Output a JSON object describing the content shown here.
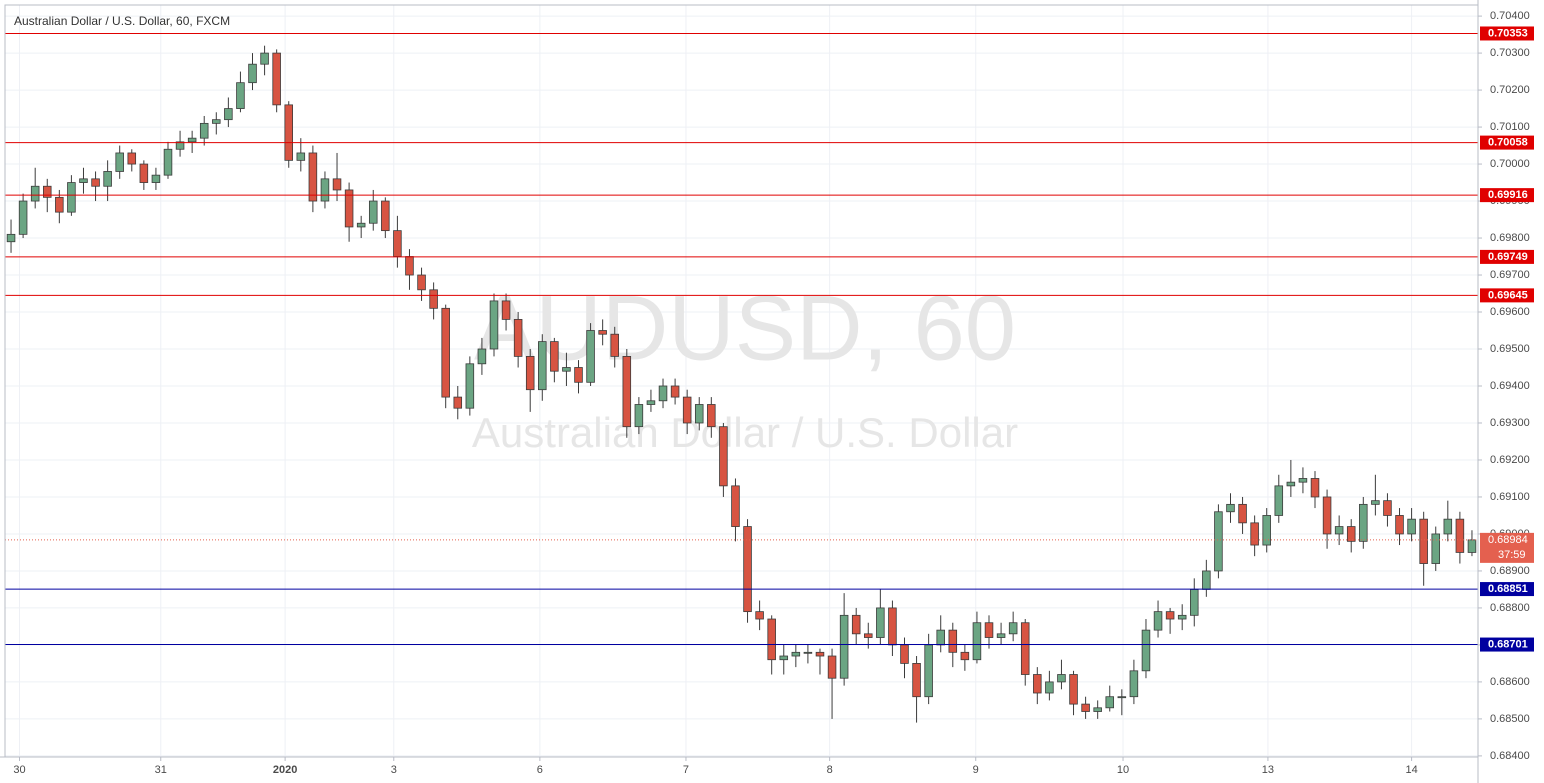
{
  "chart_data": {
    "type": "candlestick",
    "title": "Australian Dollar / U.S. Dollar, 60, FXCM",
    "watermark_symbol": "AUDUSD, 60",
    "watermark_name": "Australian Dollar / U.S. Dollar",
    "up_color": "#6ba583",
    "down_color": "#d75442",
    "grid": true,
    "ylim": [
      0.68397,
      0.7043
    ],
    "yticks": [
      {
        "value": 0.684,
        "label": "0.68400"
      },
      {
        "value": 0.685,
        "label": "0.68500"
      },
      {
        "value": 0.686,
        "label": "0.68600"
      },
      {
        "value": 0.687,
        "label": "0.68700"
      },
      {
        "value": 0.688,
        "label": "0.68800"
      },
      {
        "value": 0.689,
        "label": "0.68900"
      },
      {
        "value": 0.69,
        "label": "0.69000"
      },
      {
        "value": 0.691,
        "label": "0.69100"
      },
      {
        "value": 0.692,
        "label": "0.69200"
      },
      {
        "value": 0.693,
        "label": "0.69300"
      },
      {
        "value": 0.694,
        "label": "0.69400"
      },
      {
        "value": 0.695,
        "label": "0.69500"
      },
      {
        "value": 0.696,
        "label": "0.69600"
      },
      {
        "value": 0.697,
        "label": "0.69700"
      },
      {
        "value": 0.698,
        "label": "0.69800"
      },
      {
        "value": 0.699,
        "label": "0.69900"
      },
      {
        "value": 0.7,
        "label": "0.70000"
      },
      {
        "value": 0.701,
        "label": "0.70100"
      },
      {
        "value": 0.702,
        "label": "0.70200"
      },
      {
        "value": 0.703,
        "label": "0.70300"
      },
      {
        "value": 0.704,
        "label": "0.70400"
      }
    ],
    "xlim": [
      0,
      122
    ],
    "xticks": [
      {
        "value": 1.2,
        "label": "30"
      },
      {
        "value": 12.9,
        "label": "31"
      },
      {
        "value": 23.2,
        "label": "2020"
      },
      {
        "value": 32.2,
        "label": "3"
      },
      {
        "value": 44.3,
        "label": "6"
      },
      {
        "value": 56.4,
        "label": "7"
      },
      {
        "value": 68.3,
        "label": "8"
      },
      {
        "value": 80.4,
        "label": "9"
      },
      {
        "value": 92.6,
        "label": "10"
      },
      {
        "value": 104.6,
        "label": "13"
      },
      {
        "value": 116.5,
        "label": "14"
      }
    ],
    "levels": [
      {
        "value": 0.70353,
        "color": "#e00000"
      },
      {
        "value": 0.70058,
        "color": "#e00000"
      },
      {
        "value": 0.69916,
        "color": "#e00000"
      },
      {
        "value": 0.69749,
        "color": "#e00000"
      },
      {
        "value": 0.69645,
        "color": "#e00000"
      },
      {
        "value": 0.68851,
        "color": "#0000a0"
      },
      {
        "value": 0.68701,
        "color": "#0000a0"
      }
    ],
    "current_price": {
      "value": 0.68984,
      "countdown": "37:59",
      "color": "#e4604f"
    },
    "candles": [
      [
        0.6979,
        0.6985,
        0.6976,
        0.6981
      ],
      [
        0.6981,
        0.6992,
        0.698,
        0.699
      ],
      [
        0.699,
        0.6999,
        0.6988,
        0.6994
      ],
      [
        0.6994,
        0.6996,
        0.6987,
        0.6991
      ],
      [
        0.6991,
        0.6993,
        0.6984,
        0.6987
      ],
      [
        0.6987,
        0.6997,
        0.6986,
        0.6995
      ],
      [
        0.6995,
        0.6999,
        0.6992,
        0.6996
      ],
      [
        0.6996,
        0.6998,
        0.699,
        0.6994
      ],
      [
        0.6994,
        0.7001,
        0.699,
        0.6998
      ],
      [
        0.6998,
        0.7005,
        0.6996,
        0.7003
      ],
      [
        0.7003,
        0.7004,
        0.6998,
        0.7
      ],
      [
        0.7,
        0.7001,
        0.6993,
        0.6995
      ],
      [
        0.6995,
        0.6999,
        0.6993,
        0.6997
      ],
      [
        0.6997,
        0.7006,
        0.6996,
        0.7004
      ],
      [
        0.7004,
        0.7009,
        0.7002,
        0.7006
      ],
      [
        0.7006,
        0.7009,
        0.7003,
        0.7007
      ],
      [
        0.7007,
        0.7013,
        0.7005,
        0.7011
      ],
      [
        0.7011,
        0.7014,
        0.7008,
        0.7012
      ],
      [
        0.7012,
        0.7018,
        0.701,
        0.7015
      ],
      [
        0.7015,
        0.7025,
        0.7014,
        0.7022
      ],
      [
        0.7022,
        0.703,
        0.702,
        0.7027
      ],
      [
        0.7027,
        0.7032,
        0.7024,
        0.703
      ],
      [
        0.703,
        0.7031,
        0.7014,
        0.7016
      ],
      [
        0.7016,
        0.7017,
        0.6999,
        0.7001
      ],
      [
        0.7001,
        0.7007,
        0.6998,
        0.7003
      ],
      [
        0.7003,
        0.7005,
        0.6987,
        0.699
      ],
      [
        0.699,
        0.6998,
        0.6988,
        0.6996
      ],
      [
        0.6996,
        0.7003,
        0.699,
        0.6993
      ],
      [
        0.6993,
        0.6995,
        0.6979,
        0.6983
      ],
      [
        0.6983,
        0.6986,
        0.698,
        0.6984
      ],
      [
        0.6984,
        0.6993,
        0.6982,
        0.699
      ],
      [
        0.699,
        0.6991,
        0.698,
        0.6982
      ],
      [
        0.6982,
        0.6986,
        0.6972,
        0.6975
      ],
      [
        0.6975,
        0.6977,
        0.6966,
        0.697
      ],
      [
        0.697,
        0.6972,
        0.6963,
        0.6966
      ],
      [
        0.6966,
        0.6968,
        0.6958,
        0.6961
      ],
      [
        0.6961,
        0.6962,
        0.6934,
        0.6937
      ],
      [
        0.6937,
        0.694,
        0.6931,
        0.6934
      ],
      [
        0.6934,
        0.6948,
        0.6932,
        0.6946
      ],
      [
        0.6946,
        0.6953,
        0.6943,
        0.695
      ],
      [
        0.695,
        0.6965,
        0.6948,
        0.6963
      ],
      [
        0.6963,
        0.6965,
        0.6955,
        0.6958
      ],
      [
        0.6958,
        0.696,
        0.6945,
        0.6948
      ],
      [
        0.6948,
        0.695,
        0.6933,
        0.6939
      ],
      [
        0.6939,
        0.6954,
        0.6936,
        0.6952
      ],
      [
        0.6952,
        0.6953,
        0.6941,
        0.6944
      ],
      [
        0.6944,
        0.6949,
        0.694,
        0.6945
      ],
      [
        0.6945,
        0.6947,
        0.6938,
        0.6941
      ],
      [
        0.6941,
        0.6957,
        0.694,
        0.6955
      ],
      [
        0.6955,
        0.6958,
        0.6951,
        0.6954
      ],
      [
        0.6954,
        0.6956,
        0.6945,
        0.6948
      ],
      [
        0.6948,
        0.695,
        0.6926,
        0.6929
      ],
      [
        0.6929,
        0.6937,
        0.6927,
        0.6935
      ],
      [
        0.6935,
        0.6939,
        0.6933,
        0.6936
      ],
      [
        0.6936,
        0.6942,
        0.6934,
        0.694
      ],
      [
        0.694,
        0.6942,
        0.6935,
        0.6937
      ],
      [
        0.6937,
        0.6939,
        0.6927,
        0.693
      ],
      [
        0.693,
        0.6937,
        0.6928,
        0.6935
      ],
      [
        0.6935,
        0.6937,
        0.6926,
        0.6929
      ],
      [
        0.6929,
        0.693,
        0.691,
        0.6913
      ],
      [
        0.6913,
        0.6915,
        0.6898,
        0.6902
      ],
      [
        0.6902,
        0.6904,
        0.6876,
        0.6879
      ],
      [
        0.6879,
        0.6882,
        0.6874,
        0.6877
      ],
      [
        0.6877,
        0.6878,
        0.6862,
        0.6866
      ],
      [
        0.6866,
        0.687,
        0.6862,
        0.6867
      ],
      [
        0.6867,
        0.687,
        0.6864,
        0.6868
      ],
      [
        0.6868,
        0.687,
        0.6865,
        0.6868
      ],
      [
        0.6868,
        0.6869,
        0.6862,
        0.6867
      ],
      [
        0.6867,
        0.6869,
        0.685,
        0.6861
      ],
      [
        0.6861,
        0.6884,
        0.6859,
        0.6878
      ],
      [
        0.6878,
        0.688,
        0.687,
        0.6873
      ],
      [
        0.6873,
        0.6876,
        0.6869,
        0.6872
      ],
      [
        0.6872,
        0.6885,
        0.687,
        0.688
      ],
      [
        0.688,
        0.6882,
        0.6867,
        0.687
      ],
      [
        0.687,
        0.6872,
        0.6861,
        0.6865
      ],
      [
        0.6865,
        0.6867,
        0.6849,
        0.6856
      ],
      [
        0.6856,
        0.6873,
        0.6854,
        0.687
      ],
      [
        0.687,
        0.6878,
        0.6868,
        0.6874
      ],
      [
        0.6874,
        0.6876,
        0.6864,
        0.6868
      ],
      [
        0.6868,
        0.687,
        0.6863,
        0.6866
      ],
      [
        0.6866,
        0.6879,
        0.6865,
        0.6876
      ],
      [
        0.6876,
        0.6878,
        0.6869,
        0.6872
      ],
      [
        0.6872,
        0.6876,
        0.687,
        0.6873
      ],
      [
        0.6873,
        0.6879,
        0.6871,
        0.6876
      ],
      [
        0.6876,
        0.6877,
        0.6859,
        0.6862
      ],
      [
        0.6862,
        0.6864,
        0.6854,
        0.6857
      ],
      [
        0.6857,
        0.6863,
        0.6855,
        0.686
      ],
      [
        0.686,
        0.6866,
        0.6858,
        0.6862
      ],
      [
        0.6862,
        0.6863,
        0.6851,
        0.6854
      ],
      [
        0.6854,
        0.6856,
        0.685,
        0.6852
      ],
      [
        0.6852,
        0.6855,
        0.685,
        0.6853
      ],
      [
        0.6853,
        0.6859,
        0.6852,
        0.6856
      ],
      [
        0.6856,
        0.6858,
        0.6851,
        0.6856
      ],
      [
        0.6856,
        0.6866,
        0.6854,
        0.6863
      ],
      [
        0.6863,
        0.6877,
        0.6861,
        0.6874
      ],
      [
        0.6874,
        0.6882,
        0.6872,
        0.6879
      ],
      [
        0.6879,
        0.688,
        0.6873,
        0.6877
      ],
      [
        0.6877,
        0.6881,
        0.6874,
        0.6878
      ],
      [
        0.6878,
        0.6888,
        0.6875,
        0.6885
      ],
      [
        0.6885,
        0.6893,
        0.6883,
        0.689
      ],
      [
        0.689,
        0.6908,
        0.6888,
        0.6906
      ],
      [
        0.6906,
        0.6911,
        0.6903,
        0.6908
      ],
      [
        0.6908,
        0.691,
        0.69,
        0.6903
      ],
      [
        0.6903,
        0.6905,
        0.6894,
        0.6897
      ],
      [
        0.6897,
        0.6907,
        0.6895,
        0.6905
      ],
      [
        0.6905,
        0.6916,
        0.6903,
        0.6913
      ],
      [
        0.6913,
        0.692,
        0.691,
        0.6914
      ],
      [
        0.6914,
        0.6918,
        0.6911,
        0.6915
      ],
      [
        0.6915,
        0.6917,
        0.6907,
        0.691
      ],
      [
        0.691,
        0.6912,
        0.6896,
        0.69
      ],
      [
        0.69,
        0.6905,
        0.6897,
        0.6902
      ],
      [
        0.6902,
        0.6904,
        0.6895,
        0.6898
      ],
      [
        0.6898,
        0.691,
        0.6896,
        0.6908
      ],
      [
        0.6908,
        0.6916,
        0.6905,
        0.6909
      ],
      [
        0.6909,
        0.6911,
        0.6902,
        0.6905
      ],
      [
        0.6905,
        0.6907,
        0.6897,
        0.69
      ],
      [
        0.69,
        0.6907,
        0.6898,
        0.6904
      ],
      [
        0.6904,
        0.6906,
        0.6886,
        0.6892
      ],
      [
        0.6892,
        0.6902,
        0.689,
        0.69
      ],
      [
        0.69,
        0.6909,
        0.6898,
        0.6904
      ],
      [
        0.6904,
        0.6906,
        0.6892,
        0.6895
      ],
      [
        0.6895,
        0.6901,
        0.6894,
        0.68984
      ]
    ]
  }
}
